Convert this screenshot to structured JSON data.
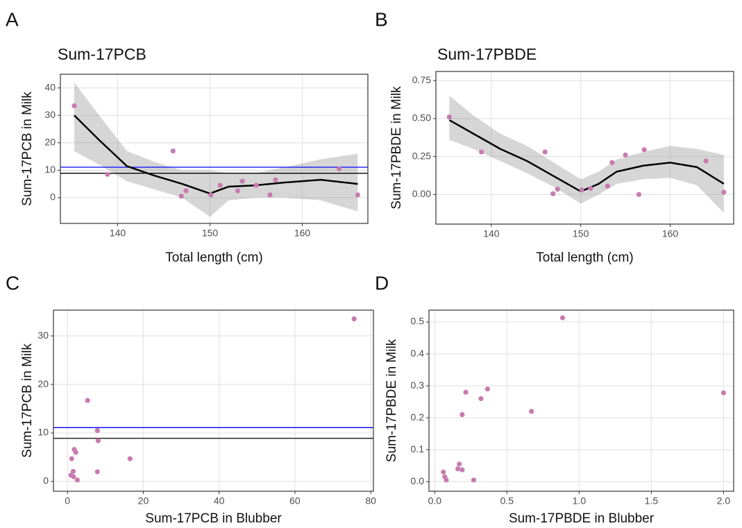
{
  "chart_data": [
    {
      "type": "scatter",
      "panel": "A",
      "title": "Sum-17PCB",
      "x_label": "Total length (cm)",
      "y_label": "Sum-17PCB in Milk",
      "x": [
        135.3,
        138.9,
        146.0,
        146.9,
        147.4,
        150.1,
        151.1,
        153.0,
        153.5,
        155.0,
        156.5,
        157.1,
        164.0,
        166.0
      ],
      "values": [
        33.5,
        8.5,
        17,
        0.5,
        2.5,
        1,
        4.5,
        2.5,
        6,
        4.5,
        1,
        6.5,
        10.5,
        1
      ],
      "color": "#c77cad",
      "smooth": {
        "x": [
          135.3,
          138,
          141,
          144,
          147,
          150,
          152,
          155,
          158,
          162,
          166
        ],
        "values": [
          30,
          21,
          11.5,
          8,
          5,
          1.5,
          4,
          4.5,
          5.5,
          6.5,
          5
        ],
        "lower": [
          17,
          12,
          6,
          3,
          0,
          -7,
          -1,
          0,
          0,
          -1,
          -5
        ],
        "upper": [
          42,
          30,
          17,
          13,
          10,
          10,
          9,
          9,
          11,
          14,
          16
        ]
      },
      "hlines": [
        {
          "value": 11.1,
          "color": "#0000ff"
        },
        {
          "value": 8.9,
          "color": "#000000"
        }
      ],
      "xlim": [
        133.8,
        167.1
      ],
      "xticks": [
        140,
        150,
        160
      ],
      "ylim": [
        -9.4,
        45
      ],
      "yticks": [
        0,
        10,
        20,
        30,
        40
      ],
      "grid": true
    },
    {
      "type": "scatter",
      "panel": "B",
      "title": "Sum-17PBDE",
      "x_label": "Total length (cm)",
      "y_label": "Sum-17PBDE in Milk",
      "x": [
        135.3,
        138.9,
        146.0,
        146.9,
        147.4,
        150.1,
        151.1,
        153.0,
        153.5,
        155.0,
        156.5,
        157.1,
        164.0,
        166.0
      ],
      "values": [
        0.51,
        0.28,
        0.28,
        0.005,
        0.035,
        0.03,
        0.04,
        0.055,
        0.21,
        0.26,
        0,
        0.295,
        0.22,
        0.015
      ],
      "color": "#c77cad",
      "smooth": {
        "x": [
          135.3,
          138,
          141,
          144,
          147,
          150,
          152,
          154,
          157,
          160,
          163,
          166
        ],
        "values": [
          0.49,
          0.4,
          0.3,
          0.22,
          0.12,
          0.02,
          0.07,
          0.15,
          0.19,
          0.21,
          0.18,
          0.07
        ],
        "lower": [
          0.36,
          0.3,
          0.22,
          0.14,
          0.05,
          -0.06,
          0.0,
          0.07,
          0.1,
          0.11,
          0.06,
          -0.12
        ],
        "upper": [
          0.65,
          0.52,
          0.4,
          0.32,
          0.21,
          0.1,
          0.15,
          0.23,
          0.28,
          0.32,
          0.3,
          0.26
        ]
      },
      "xlim": [
        133.8,
        167.1
      ],
      "xticks": [
        140,
        150,
        160
      ],
      "ylim": [
        -0.195,
        0.81
      ],
      "yticks": [
        {
          "value": 0,
          "label": "0.00"
        },
        {
          "value": 0.25,
          "label": "0.25"
        },
        {
          "value": 0.5,
          "label": "0.50"
        },
        {
          "value": 0.75,
          "label": "0.75"
        }
      ],
      "grid": true
    },
    {
      "type": "scatter",
      "panel": "C",
      "x_label": "Sum-17PCB in Blubber",
      "y_label": "Sum-17PCB in Milk",
      "x": [
        75.6,
        5.3,
        7.9,
        8.1,
        1.8,
        2.2,
        1.1,
        16.5,
        1.5,
        7.9,
        0.9,
        1.6,
        2.6
      ],
      "values": [
        33.5,
        16.7,
        10.5,
        8.4,
        6.6,
        6.0,
        4.7,
        4.7,
        2.1,
        2.0,
        1.3,
        1.0,
        0.3
      ],
      "color": "#c77cad",
      "hlines": [
        {
          "value": 11.1,
          "color": "#0000ff"
        },
        {
          "value": 8.9,
          "color": "#000000"
        }
      ],
      "xlim": [
        -3.7,
        80.7
      ],
      "xticks": [
        0,
        20,
        40,
        60,
        80
      ],
      "ylim": [
        -2,
        35.3
      ],
      "yticks": [
        0,
        10,
        20,
        30
      ],
      "grid": true
    },
    {
      "type": "scatter",
      "panel": "D",
      "x_label": "Sum-17PBDE in Blubber",
      "y_label": "Sum-17PBDE in Milk",
      "x": [
        0.885,
        2.0,
        0.67,
        0.365,
        0.32,
        0.215,
        0.19,
        0.17,
        0.16,
        0.19,
        0.27,
        0.06,
        0.07,
        0.08
      ],
      "values": [
        0.513,
        0.278,
        0.22,
        0.29,
        0.26,
        0.28,
        0.21,
        0.055,
        0.04,
        0.037,
        0.005,
        0.03,
        0.015,
        0.005
      ],
      "color": "#c77cad",
      "xlim": [
        -0.04,
        2.07
      ],
      "xticks": [
        {
          "value": 0,
          "label": "0.0"
        },
        {
          "value": 0.5,
          "label": "0.5"
        },
        {
          "value": 1,
          "label": "1.0"
        },
        {
          "value": 1.5,
          "label": "1.5"
        },
        {
          "value": 2,
          "label": "2.0"
        }
      ],
      "ylim": [
        -0.03,
        0.537
      ],
      "yticks": [
        {
          "value": 0,
          "label": "0.0"
        },
        {
          "value": 0.1,
          "label": "0.1"
        },
        {
          "value": 0.2,
          "label": "0.2"
        },
        {
          "value": 0.3,
          "label": "0.3"
        },
        {
          "value": 0.4,
          "label": "0.4"
        },
        {
          "value": 0.5,
          "label": "0.5"
        }
      ],
      "grid": true
    }
  ]
}
